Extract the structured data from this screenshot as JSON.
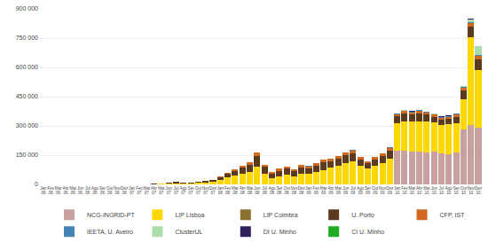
{
  "chart_data": {
    "type": "bar",
    "stacked": true,
    "grid": true,
    "legend": "bottom",
    "categories": [
      "Jan\n06",
      "Fev\n06",
      "Mar\n06",
      "Abr\n06",
      "Mai\n06",
      "Jun\n06",
      "Jul\n06",
      "Ago\n06",
      "Set\n06",
      "Out\n06",
      "Nov\n06",
      "Dez\n06",
      "Jan\n07",
      "Fev\n07",
      "Mar\n07",
      "Abr\n07",
      "Mai\n07",
      "Jun\n07",
      "Jul\n07",
      "Ago\n07",
      "Set\n07",
      "Out\n07",
      "Nov\n07",
      "Dez\n07",
      "Jan\n08",
      "Fev\n08",
      "Mar\n08",
      "Abr\n08",
      "Mai\n08",
      "Jun\n08",
      "Jul\n08",
      "Ago\n08",
      "Set\n08",
      "Out\n08",
      "Nov\n08",
      "Dez\n08",
      "Jan\n09",
      "Fev\n09",
      "Mar\n09",
      "Abr\n09",
      "Mai\n09",
      "Jun\n09",
      "Jul\n09",
      "Ago\n09",
      "Set\n09",
      "Out\n09",
      "Nov\n09",
      "Dez\n09",
      "Jan\n10",
      "Fev\n10",
      "Mar\n10",
      "Abr\n10",
      "Mai\n10",
      "Jun\n10",
      "Jul\n10",
      "Ago\n10",
      "Set\n10",
      "Out\n10",
      "Nov\n10",
      "Dez\n10"
    ],
    "ylim": [
      0,
      900000
    ],
    "yticks": [
      0,
      {
        "value": 150000,
        "label": "150 000"
      },
      {
        "value": 300000,
        "label": "300 000"
      },
      {
        "value": 450000,
        "label": "450 000"
      },
      {
        "value": 600000,
        "label": "600 000"
      },
      {
        "value": 750000,
        "label": "750 000"
      },
      {
        "value": 900000,
        "label": "900 000"
      }
    ],
    "series": [
      {
        "name": "NCG-INGRID-PT",
        "color": "#C9A0A0",
        "values": [
          0,
          0,
          0,
          0,
          0,
          0,
          0,
          0,
          0,
          0,
          0,
          0,
          0,
          0,
          0,
          0,
          0,
          0,
          0,
          0,
          0,
          0,
          0,
          0,
          0,
          0,
          0,
          0,
          0,
          0,
          0,
          0,
          0,
          0,
          0,
          0,
          0,
          0,
          0,
          0,
          0,
          0,
          0,
          0,
          0,
          0,
          0,
          0,
          175000,
          175000,
          170000,
          170000,
          165000,
          170000,
          160000,
          155000,
          165000,
          280000,
          305000,
          290000
        ]
      },
      {
        "name": "LIP Lisboa",
        "color": "#FFD700",
        "values": [
          500,
          500,
          500,
          500,
          500,
          500,
          500,
          500,
          500,
          500,
          500,
          500,
          500,
          500,
          500,
          500,
          3000,
          5000,
          6000,
          5000,
          5000,
          8000,
          10000,
          12000,
          25000,
          35000,
          45000,
          55000,
          65000,
          90000,
          55000,
          32000,
          42000,
          52000,
          42000,
          55000,
          55000,
          65000,
          75000,
          85000,
          95000,
          108000,
          118000,
          95000,
          82000,
          95000,
          108000,
          130000,
          140000,
          150000,
          155000,
          155000,
          160000,
          150000,
          145000,
          155000,
          150000,
          155000,
          450000,
          295000
        ]
      },
      {
        "name": "LIP Coimbra",
        "color": "#8B7030",
        "values": [
          0,
          0,
          0,
          0,
          0,
          0,
          0,
          0,
          0,
          0,
          0,
          0,
          0,
          0,
          0,
          0,
          0,
          0,
          0,
          0,
          0,
          0,
          0,
          0,
          0,
          0,
          0,
          0,
          0,
          0,
          0,
          0,
          0,
          0,
          0,
          0,
          0,
          0,
          0,
          0,
          0,
          0,
          0,
          0,
          0,
          0,
          0,
          0,
          0,
          0,
          0,
          0,
          0,
          0,
          0,
          0,
          0,
          0,
          0,
          0
        ]
      },
      {
        "name": "U. Porto",
        "color": "#5C3A1E",
        "values": [
          0,
          0,
          0,
          0,
          0,
          0,
          0,
          0,
          0,
          0,
          0,
          0,
          0,
          500,
          1000,
          2000,
          3000,
          5000,
          6000,
          4000,
          5000,
          7000,
          9000,
          11000,
          12000,
          18000,
          25000,
          30000,
          35000,
          55000,
          35000,
          22000,
          28000,
          28000,
          27000,
          32000,
          28000,
          32000,
          38000,
          33000,
          38000,
          42000,
          42000,
          32000,
          27000,
          32000,
          38000,
          43000,
          33000,
          38000,
          33000,
          38000,
          32000,
          27000,
          27000,
          27000,
          32000,
          45000,
          55000,
          55000
        ]
      },
      {
        "name": "CFP, IST",
        "color": "#D2691E",
        "values": [
          0,
          0,
          0,
          0,
          0,
          0,
          0,
          0,
          0,
          0,
          0,
          0,
          0,
          0,
          0,
          0,
          0,
          0,
          0,
          0,
          0,
          0,
          0,
          0,
          5000,
          5000,
          8000,
          10000,
          12000,
          20000,
          12000,
          8000,
          10000,
          10000,
          10000,
          12000,
          10000,
          12000,
          14000,
          12000,
          14000,
          15000,
          15000,
          12000,
          10000,
          12000,
          14000,
          15000,
          12000,
          14000,
          12000,
          14000,
          12000,
          10000,
          10000,
          10000,
          12000,
          15000,
          18000,
          18000
        ]
      },
      {
        "name": "IEETA, U. Aveiro",
        "color": "#4682B4",
        "values": [
          0,
          0,
          0,
          0,
          0,
          0,
          0,
          0,
          0,
          0,
          0,
          0,
          0,
          0,
          0,
          0,
          0,
          0,
          0,
          0,
          0,
          0,
          0,
          0,
          0,
          0,
          0,
          0,
          0,
          0,
          0,
          0,
          0,
          0,
          0,
          0,
          500,
          500,
          500,
          500,
          500,
          500,
          500,
          500,
          500,
          500,
          500,
          1000,
          2000,
          2000,
          3000,
          4000,
          3500,
          4000,
          3500,
          3000,
          3500,
          4500,
          5500,
          5000
        ]
      },
      {
        "name": "ClusterUL",
        "color": "#AADDAA",
        "values": [
          0,
          0,
          0,
          0,
          0,
          0,
          0,
          0,
          0,
          0,
          0,
          0,
          0,
          0,
          0,
          0,
          0,
          0,
          0,
          0,
          0,
          0,
          0,
          0,
          0,
          0,
          0,
          0,
          0,
          0,
          0,
          0,
          0,
          0,
          0,
          0,
          0,
          0,
          0,
          0,
          0,
          0,
          0,
          0,
          0,
          0,
          0,
          0,
          1500,
          1500,
          2000,
          1500,
          1500,
          1500,
          1500,
          1500,
          2000,
          4000,
          12000,
          45000
        ]
      },
      {
        "name": "DI U. Minho",
        "color": "#2F1F5A",
        "values": [
          0,
          0,
          0,
          0,
          0,
          0,
          0,
          0,
          0,
          0,
          0,
          0,
          0,
          0,
          0,
          0,
          0,
          0,
          0,
          0,
          0,
          0,
          0,
          0,
          0,
          0,
          0,
          0,
          0,
          0,
          0,
          0,
          0,
          0,
          0,
          0,
          0,
          0,
          0,
          0,
          0,
          0,
          0,
          0,
          0,
          0,
          0,
          0,
          1000,
          1000,
          1000,
          1000,
          1000,
          1000,
          1000,
          1000,
          1000,
          2000,
          3000,
          3000
        ]
      },
      {
        "name": "CI U. Minho",
        "color": "#22AA22",
        "values": [
          0,
          0,
          0,
          0,
          0,
          0,
          0,
          0,
          0,
          0,
          0,
          0,
          0,
          0,
          0,
          0,
          0,
          0,
          0,
          0,
          0,
          0,
          0,
          0,
          0,
          0,
          0,
          0,
          0,
          0,
          0,
          0,
          0,
          0,
          0,
          0,
          0,
          0,
          0,
          0,
          0,
          0,
          0,
          0,
          0,
          0,
          0,
          0,
          0,
          0,
          0,
          0,
          0,
          0,
          0,
          0,
          0,
          0,
          0,
          0
        ]
      }
    ]
  }
}
